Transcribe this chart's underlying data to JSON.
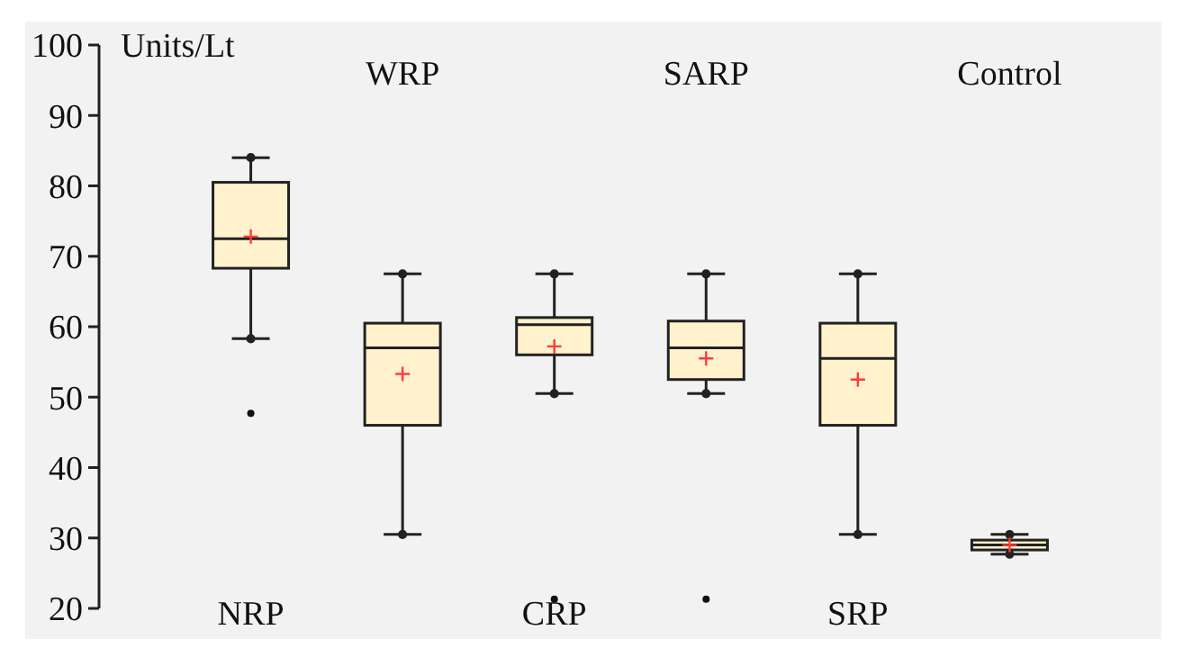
{
  "chart_data": {
    "type": "box",
    "ylabel": "Units/Lt",
    "categories": [
      "NRP",
      "WRP",
      "CRP",
      "SARP",
      "SRP",
      "Control"
    ],
    "ylim": [
      20,
      100
    ],
    "yticks": [
      20,
      30,
      40,
      50,
      60,
      70,
      80,
      90,
      100
    ],
    "grid": false,
    "color": "#fff2cc",
    "boxes": [
      {
        "low": 58.3,
        "q1": 68.3,
        "median": 72.5,
        "q3": 80.5,
        "high": 84,
        "mean": 72.8,
        "outliers": [
          47.7
        ]
      },
      {
        "low": 30.5,
        "q1": 46,
        "median": 57,
        "q3": 60.5,
        "high": 67.5,
        "mean": 53.3
      },
      {
        "low": 50.5,
        "q1": 56,
        "median": 60.3,
        "q3": 61.3,
        "high": 67.5,
        "mean": 57.2,
        "outliers": [
          21.3
        ]
      },
      {
        "low": 50.5,
        "q1": 52.5,
        "median": 57,
        "q3": 60.8,
        "high": 67.5,
        "mean": 55.5,
        "outliers": [
          21.3
        ]
      },
      {
        "low": 30.5,
        "q1": 46,
        "median": 55.5,
        "q3": 60.5,
        "high": 67.5,
        "mean": 52.5
      },
      {
        "low": 27.7,
        "q1": 28.3,
        "median": 29,
        "q3": 29.7,
        "high": 30.5,
        "mean": 29
      }
    ]
  }
}
